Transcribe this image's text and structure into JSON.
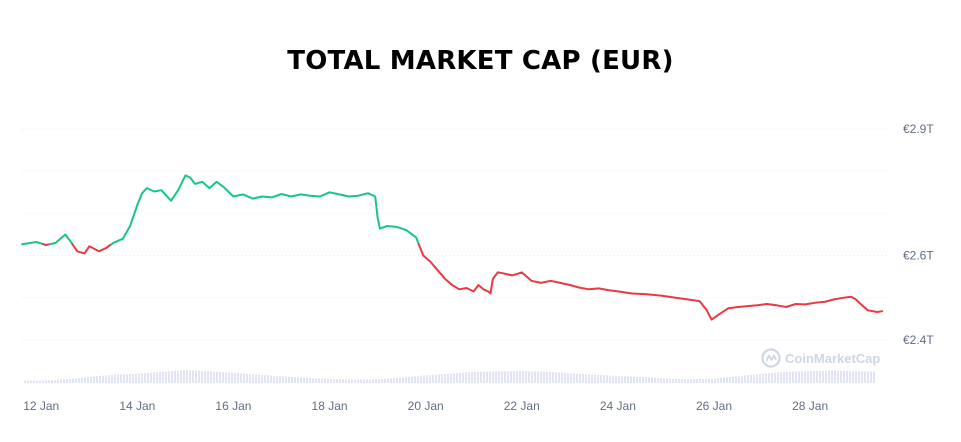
{
  "chart_data": {
    "type": "line",
    "title": "TOTAL MARKET CAP (EUR)",
    "y_tick_labels": [
      "€2.9T",
      "€2.6T",
      "€2.4T"
    ],
    "y_tick_values": [
      2.9,
      2.6,
      2.4
    ],
    "ylim": [
      2.3,
      2.95
    ],
    "x_tick_labels": [
      "12 Jan",
      "14 Jan",
      "16 Jan",
      "18 Jan",
      "20 Jan",
      "22 Jan",
      "24 Jan",
      "26 Jan",
      "28 Jan"
    ],
    "x_tick_days": [
      12,
      14,
      16,
      18,
      20,
      22,
      24,
      26,
      28
    ],
    "xlim": [
      11.6,
      29.6
    ],
    "grid": "horizontal-dotted",
    "watermark": "CoinMarketCap",
    "colors": {
      "up": "#16c784",
      "down": "#ea3943",
      "volume": "#e1e4f2",
      "grid": "#e6e9ef"
    },
    "series": [
      {
        "x": [
          11.6,
          11.9,
          12.1,
          12.3,
          12.5,
          12.6,
          12.75,
          12.9,
          13.0,
          13.2,
          13.35,
          13.5,
          13.7,
          13.85,
          14.0,
          14.1,
          14.2,
          14.35,
          14.5,
          14.7,
          14.85,
          15.0,
          15.1,
          15.2,
          15.35,
          15.5,
          15.65,
          15.8,
          16.0,
          16.2,
          16.4,
          16.6,
          16.8,
          17.0,
          17.2,
          17.4,
          17.6,
          17.8,
          18.0,
          18.2,
          18.4,
          18.6,
          18.8,
          18.95,
          19.0,
          19.05,
          19.2,
          19.4,
          19.6,
          19.8,
          19.95,
          20.1,
          20.25,
          20.4,
          20.55,
          20.7,
          20.85,
          21.0,
          21.1,
          21.2,
          21.3,
          21.35,
          21.4,
          21.5,
          21.6,
          21.8,
          22.0,
          22.2,
          22.4,
          22.6,
          22.8,
          23.0,
          23.2,
          23.4,
          23.6,
          23.8,
          24.0,
          24.3,
          24.6,
          24.9,
          25.2,
          25.5,
          25.7,
          25.85,
          25.95,
          26.1,
          26.3,
          26.5,
          26.7,
          26.9,
          27.1,
          27.3,
          27.5,
          27.7,
          27.9,
          28.1,
          28.3,
          28.5,
          28.7,
          28.85,
          28.95,
          29.05,
          29.2,
          29.4,
          29.5
        ],
        "values": [
          2.627,
          2.632,
          2.625,
          2.63,
          2.65,
          2.635,
          2.61,
          2.605,
          2.622,
          2.61,
          2.618,
          2.63,
          2.64,
          2.67,
          2.72,
          2.748,
          2.76,
          2.752,
          2.755,
          2.73,
          2.755,
          2.79,
          2.785,
          2.77,
          2.775,
          2.76,
          2.775,
          2.762,
          2.74,
          2.745,
          2.735,
          2.74,
          2.738,
          2.746,
          2.74,
          2.745,
          2.742,
          2.74,
          2.75,
          2.745,
          2.74,
          2.742,
          2.748,
          2.74,
          2.69,
          2.664,
          2.67,
          2.668,
          2.66,
          2.643,
          2.6,
          2.585,
          2.565,
          2.545,
          2.53,
          2.52,
          2.523,
          2.515,
          2.53,
          2.52,
          2.515,
          2.51,
          2.545,
          2.56,
          2.558,
          2.553,
          2.56,
          2.54,
          2.535,
          2.54,
          2.535,
          2.53,
          2.524,
          2.52,
          2.522,
          2.518,
          2.515,
          2.51,
          2.508,
          2.505,
          2.5,
          2.495,
          2.492,
          2.47,
          2.448,
          2.46,
          2.475,
          2.478,
          2.48,
          2.482,
          2.485,
          2.482,
          2.478,
          2.485,
          2.484,
          2.488,
          2.49,
          2.496,
          2.5,
          2.502,
          2.496,
          2.485,
          2.47,
          2.466,
          2.468
        ]
      }
    ],
    "volume": {
      "x": [
        11.6,
        12.0,
        12.5,
        13.0,
        13.5,
        14.0,
        14.5,
        15.0,
        15.5,
        16.0,
        16.5,
        17.0,
        17.5,
        18.0,
        18.5,
        19.0,
        19.5,
        20.0,
        20.5,
        21.0,
        21.5,
        22.0,
        22.5,
        23.0,
        23.5,
        24.0,
        24.5,
        25.0,
        25.5,
        26.0,
        26.5,
        27.0,
        27.5,
        28.0,
        28.5,
        29.0,
        29.5
      ],
      "values": [
        0.03,
        0.04,
        0.07,
        0.14,
        0.19,
        0.22,
        0.27,
        0.32,
        0.28,
        0.24,
        0.19,
        0.15,
        0.11,
        0.08,
        0.06,
        0.07,
        0.12,
        0.18,
        0.22,
        0.27,
        0.28,
        0.29,
        0.27,
        0.23,
        0.19,
        0.16,
        0.13,
        0.09,
        0.07,
        0.09,
        0.16,
        0.22,
        0.27,
        0.29,
        0.3,
        0.28,
        0.27
      ]
    }
  }
}
